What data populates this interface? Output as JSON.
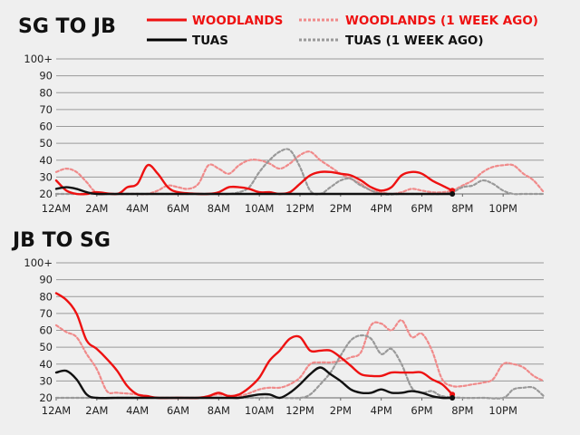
{
  "legend": [
    {
      "name": "WOODLANDS",
      "color": "#ee1111",
      "dashed": false
    },
    {
      "name": "WOODLANDS (1 WEEK AGO)",
      "color": "#ee1111",
      "dashed": true
    },
    {
      "name": "TUAS",
      "color": "#000000",
      "dashed": false
    },
    {
      "name": "TUAS (1 WEEK AGO)",
      "color": "#444444",
      "dashed": true
    }
  ],
  "chart_data": [
    {
      "type": "line",
      "title": "SG TO JB",
      "ylim": [
        20,
        100
      ],
      "yticks": [
        "20",
        "30",
        "40",
        "50",
        "60",
        "70",
        "80",
        "90",
        "100+"
      ],
      "xticks": [
        "12AM",
        "2AM",
        "4AM",
        "6AM",
        "8AM",
        "10AM",
        "12PM",
        "2PM",
        "4PM",
        "6PM",
        "8PM",
        "10PM"
      ],
      "xlim": [
        0,
        24
      ],
      "grid": true,
      "series": [
        {
          "name": "WOODLANDS (1 WEEK AGO)",
          "color": "#f08a8a",
          "dashed": true,
          "x": [
            0,
            0.5,
            1,
            1.5,
            2,
            3,
            3.5,
            4,
            4.5,
            5,
            5.5,
            6,
            6.5,
            7,
            7.5,
            8,
            8.5,
            9,
            9.5,
            10,
            10.5,
            11,
            11.5,
            12,
            12.5,
            13,
            13.5,
            14,
            14.5,
            15,
            15.5,
            16,
            16.5,
            17,
            17.5,
            18,
            18.5,
            19,
            19.5,
            20,
            20.5,
            21,
            21.5,
            22,
            22.5,
            23,
            23.5,
            24
          ],
          "y": [
            33,
            35,
            33,
            27,
            21,
            20,
            20,
            20,
            20,
            22,
            25,
            24,
            23,
            26,
            37,
            35,
            32,
            37,
            40,
            40,
            38,
            35,
            38,
            43,
            45,
            40,
            36,
            32,
            29,
            26,
            22,
            21,
            20,
            21,
            23,
            22,
            21,
            21,
            22,
            25,
            28,
            33,
            36,
            37,
            37,
            32,
            28,
            21
          ]
        },
        {
          "name": "TUAS (1 WEEK AGO)",
          "color": "#999999",
          "dashed": true,
          "x": [
            0,
            1,
            2,
            3,
            4,
            5,
            6,
            7,
            8,
            8.5,
            9,
            9.5,
            10,
            10.5,
            11,
            11.5,
            12,
            12.5,
            13,
            13.5,
            14,
            14.5,
            15,
            16,
            17,
            18,
            19,
            19.5,
            20,
            20.5,
            21,
            21.5,
            22,
            22.5,
            23,
            24
          ],
          "y": [
            20,
            20,
            20,
            20,
            20,
            20,
            20,
            20,
            20,
            20,
            21,
            24,
            33,
            40,
            45,
            46,
            36,
            22,
            20,
            24,
            28,
            29,
            25,
            20,
            20,
            20,
            20,
            21,
            24,
            25,
            28,
            26,
            22,
            20,
            20,
            20
          ]
        },
        {
          "name": "WOODLANDS",
          "color": "#ee1111",
          "dashed": false,
          "x": [
            0,
            0.5,
            1,
            1.5,
            2,
            3,
            3.5,
            4,
            4.5,
            5,
            5.5,
            6,
            7,
            7.5,
            8,
            8.5,
            9,
            9.5,
            10,
            10.5,
            11,
            11.5,
            12,
            12.5,
            13,
            13.5,
            14,
            14.5,
            15,
            15.5,
            16,
            16.5,
            17,
            17.5,
            18,
            18.5,
            19,
            19.5
          ],
          "y": [
            28,
            22,
            20,
            20,
            21,
            20,
            24,
            26,
            37,
            32,
            24,
            21,
            20,
            20,
            21,
            24,
            24,
            23,
            21,
            21,
            20,
            21,
            26,
            31,
            33,
            33,
            32,
            31,
            28,
            24,
            22,
            24,
            31,
            33,
            32,
            28,
            25,
            22
          ]
        },
        {
          "name": "TUAS",
          "color": "#111111",
          "dashed": false,
          "x": [
            0,
            0.5,
            1,
            1.5,
            2,
            3,
            5,
            7,
            9,
            11,
            13,
            15,
            17,
            19,
            19.5
          ],
          "y": [
            23,
            24,
            23,
            21,
            20,
            20,
            20,
            20,
            20,
            20,
            20,
            20,
            20,
            20,
            20
          ]
        }
      ],
      "end_points": [
        {
          "x": 19.5,
          "y": 22,
          "color": "#ee1111"
        },
        {
          "x": 19.5,
          "y": 20,
          "color": "#111111"
        }
      ]
    },
    {
      "type": "line",
      "title": "JB TO SG",
      "ylim": [
        20,
        100
      ],
      "yticks": [
        "20",
        "30",
        "40",
        "50",
        "60",
        "70",
        "80",
        "90",
        "100+"
      ],
      "xticks": [
        "12AM",
        "2AM",
        "4AM",
        "6AM",
        "8AM",
        "10AM",
        "12PM",
        "2PM",
        "4PM",
        "6PM",
        "8PM",
        "10PM"
      ],
      "xlim": [
        0,
        24
      ],
      "grid": true,
      "series": [
        {
          "name": "WOODLANDS (1 WEEK AGO)",
          "color": "#f08a8a",
          "dashed": true,
          "x": [
            0,
            0.5,
            1,
            1.5,
            2,
            2.5,
            3,
            4,
            5,
            6,
            7,
            8,
            9,
            10,
            10.5,
            11,
            11.5,
            12,
            12.5,
            13,
            13.5,
            14,
            14.5,
            15,
            15.5,
            16,
            16.5,
            17,
            17.5,
            18,
            18.5,
            19,
            19.5,
            20,
            20.5,
            21,
            21.5,
            22,
            22.5,
            23,
            23.5,
            24
          ],
          "y": [
            63,
            59,
            56,
            46,
            37,
            24,
            23,
            22,
            20,
            20,
            20,
            22,
            21,
            25,
            26,
            26,
            28,
            32,
            40,
            41,
            41,
            42,
            44,
            47,
            63,
            64,
            60,
            66,
            56,
            58,
            48,
            31,
            27,
            27,
            28,
            29,
            31,
            40,
            40,
            38,
            33,
            30
          ]
        },
        {
          "name": "TUAS (1 WEEK AGO)",
          "color": "#999999",
          "dashed": true,
          "x": [
            0,
            1,
            2,
            3,
            4,
            5,
            6,
            7,
            8,
            9,
            10,
            11,
            12,
            12.5,
            13,
            13.5,
            14,
            14.5,
            15,
            15.5,
            16,
            16.5,
            17,
            17.5,
            18,
            18.5,
            19,
            20,
            21,
            22,
            22.5,
            23,
            23.5,
            24
          ],
          "y": [
            20,
            20,
            20,
            20,
            20,
            20,
            20,
            20,
            20,
            20,
            20,
            20,
            20,
            22,
            28,
            35,
            45,
            54,
            57,
            55,
            46,
            49,
            40,
            26,
            23,
            24,
            21,
            20,
            20,
            20,
            25,
            26,
            26,
            21
          ]
        },
        {
          "name": "WOODLANDS",
          "color": "#ee1111",
          "dashed": false,
          "x": [
            0,
            0.5,
            1,
            1.5,
            2,
            2.5,
            3,
            3.5,
            4,
            4.5,
            5,
            6,
            7,
            7.5,
            8,
            8.5,
            9,
            9.5,
            10,
            10.5,
            11,
            11.5,
            12,
            12.5,
            13,
            13.5,
            14,
            14.5,
            15,
            15.5,
            16,
            16.5,
            17,
            17.5,
            18,
            18.5,
            19,
            19.5
          ],
          "y": [
            82,
            78,
            70,
            54,
            49,
            43,
            36,
            27,
            22,
            21,
            20,
            20,
            20,
            21,
            23,
            21,
            22,
            26,
            32,
            42,
            48,
            55,
            56,
            48,
            48,
            48,
            44,
            39,
            34,
            33,
            33,
            35,
            35,
            35,
            35,
            31,
            28,
            22
          ]
        },
        {
          "name": "TUAS",
          "color": "#111111",
          "dashed": false,
          "x": [
            0,
            0.5,
            1,
            1.5,
            2,
            3,
            4,
            5,
            6,
            7,
            8,
            8.5,
            9,
            9.5,
            10,
            10.5,
            11,
            11.5,
            12,
            12.5,
            13,
            13.5,
            14,
            14.5,
            15,
            15.5,
            16,
            16.5,
            17,
            17.5,
            18,
            18.5,
            19,
            19.5
          ],
          "y": [
            35,
            36,
            31,
            22,
            20,
            20,
            20,
            20,
            20,
            20,
            20,
            20,
            20,
            21,
            22,
            22,
            20,
            23,
            28,
            34,
            38,
            34,
            30,
            25,
            23,
            23,
            25,
            23,
            23,
            24,
            23,
            21,
            20,
            20
          ]
        }
      ],
      "end_points": [
        {
          "x": 19.5,
          "y": 22,
          "color": "#ee1111"
        },
        {
          "x": 19.5,
          "y": 20,
          "color": "#111111"
        }
      ]
    }
  ]
}
